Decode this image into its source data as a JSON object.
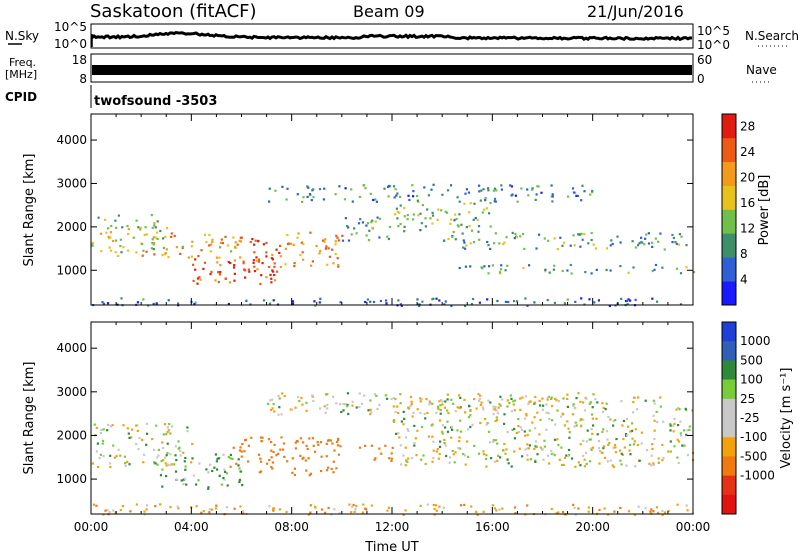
{
  "header": {
    "station": "Saskatoon (fitACF)",
    "beam": "Beam 09",
    "date": "21/Jun/2016"
  },
  "side_labels": {
    "nsky": "N.Sky",
    "freq_line1": "Freq.",
    "freq_line2": "[MHz]",
    "cpid": "CPID",
    "nsearch": "N.Search",
    "nave": "Nave"
  },
  "cpid_text": "twofsound -3503",
  "strip_ticks": {
    "noise_left_top": "10^5",
    "noise_left_bottom": "10^0",
    "noise_right_top": "10^5",
    "noise_right_bottom": "10^0",
    "freq_top": "18",
    "freq_bottom": "8",
    "nave_top": "60",
    "nave_bottom": "0"
  },
  "colors": {
    "power_scale": [
      "#1a1aff",
      "#2e5fd6",
      "#3d8f6a",
      "#6fbf4a",
      "#e8c21a",
      "#f39a1a",
      "#ee5a14",
      "#e21b0f"
    ],
    "velocity_scale": [
      "#1f3fd9",
      "#2f5fb8",
      "#2e8a3a",
      "#77cc3a",
      "#c8c8c8",
      "#c8c8c8",
      "#f5a10c",
      "#f07a10",
      "#e53215",
      "#e3110f"
    ],
    "trace": "#000000"
  },
  "chart_data": [
    {
      "type": "heatmap",
      "panel": "power",
      "ylabel": "Slant Range [km]",
      "xlabel": "",
      "ylim": [
        200,
        4600
      ],
      "xlim": [
        0,
        24
      ],
      "yticks": [
        "1000",
        "2000",
        "3000",
        "4000"
      ],
      "colorbar_label": "Power [dB]",
      "colorbar_ticks": [
        "4",
        "8",
        "12",
        "16",
        "20",
        "24",
        "28"
      ],
      "colorbar_range": [
        0,
        30
      ],
      "bands": [
        {
          "t0": 0,
          "t1": 3,
          "r0": 1350,
          "r1": 2300,
          "value": 14
        },
        {
          "t0": 2,
          "t1": 6,
          "r0": 1300,
          "r1": 1900,
          "value": 20
        },
        {
          "t0": 4,
          "t1": 7.5,
          "r0": 700,
          "r1": 1300,
          "value": 27
        },
        {
          "t0": 6,
          "t1": 7.5,
          "r0": 900,
          "r1": 1800,
          "value": 27
        },
        {
          "t0": 7.5,
          "t1": 10,
          "r0": 1100,
          "r1": 1900,
          "value": 20
        },
        {
          "t0": 10,
          "t1": 12,
          "r0": 1700,
          "r1": 2300,
          "value": 12
        },
        {
          "t0": 12,
          "t1": 16,
          "r0": 1900,
          "r1": 2600,
          "value": 13
        },
        {
          "t0": 14,
          "t1": 24,
          "r0": 1500,
          "r1": 1900,
          "value": 11
        },
        {
          "t0": 14.5,
          "t1": 24,
          "r0": 950,
          "r1": 1150,
          "value": 10
        },
        {
          "t0": 7,
          "t1": 20,
          "r0": 2600,
          "r1": 3000,
          "value": 9
        },
        {
          "t0": 0,
          "t1": 24,
          "r0": 200,
          "r1": 380,
          "value": 6
        }
      ]
    },
    {
      "type": "heatmap",
      "panel": "velocity",
      "ylabel": "Slant Range [km]",
      "xlabel": "Time UT",
      "ylim": [
        200,
        4600
      ],
      "xlim": [
        0,
        24
      ],
      "xticks": [
        "00:00",
        "04:00",
        "08:00",
        "12:00",
        "16:00",
        "20:00",
        "00:00"
      ],
      "yticks": [
        "1000",
        "2000",
        "3000",
        "4000"
      ],
      "colorbar_label": "Velocity [m s⁻¹]",
      "colorbar_ticks": [
        "1000",
        "500",
        "100",
        "25",
        "-25",
        "-100",
        "-500",
        "-1000"
      ],
      "bands": [
        {
          "t0": 0,
          "t1": 4,
          "r0": 1300,
          "r1": 2300,
          "value": 0
        },
        {
          "t0": 2.5,
          "t1": 6,
          "r0": 800,
          "r1": 1600,
          "value": 60
        },
        {
          "t0": 5.5,
          "t1": 10,
          "r0": 1100,
          "r1": 2000,
          "value": -300
        },
        {
          "t0": 10.5,
          "t1": 12,
          "r0": 1400,
          "r1": 1800,
          "value": -300
        },
        {
          "t0": 12,
          "t1": 24,
          "r0": 1300,
          "r1": 2900,
          "value": 0
        },
        {
          "t0": 7,
          "t1": 20,
          "r0": 2500,
          "r1": 3000,
          "value": 0
        },
        {
          "t0": 0,
          "t1": 24,
          "r0": 200,
          "r1": 450,
          "value": -80
        }
      ]
    }
  ]
}
